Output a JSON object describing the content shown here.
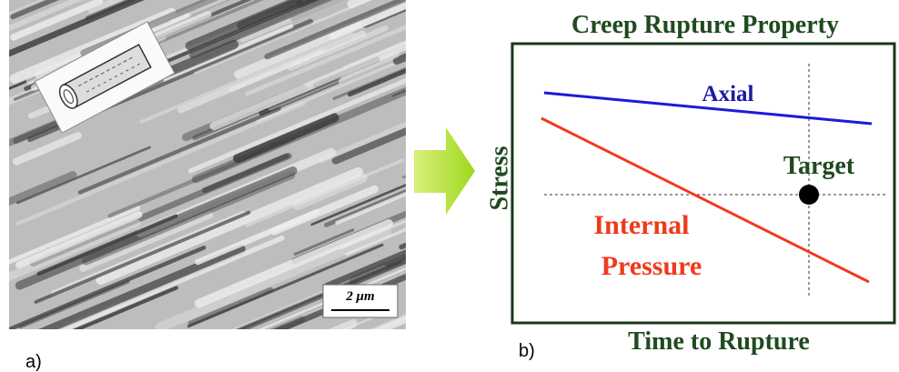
{
  "panel_a": {
    "label": "a)",
    "scale_bar": "2 μm"
  },
  "panel_b": {
    "label": "b)",
    "title": "Creep Rupture Property",
    "y_axis_label": "Stress",
    "x_axis_label": "Time to Rupture",
    "axial_label": "Axial",
    "internal_pressure_label": [
      "Internal",
      "Pressure"
    ],
    "target_label": "Target"
  }
}
